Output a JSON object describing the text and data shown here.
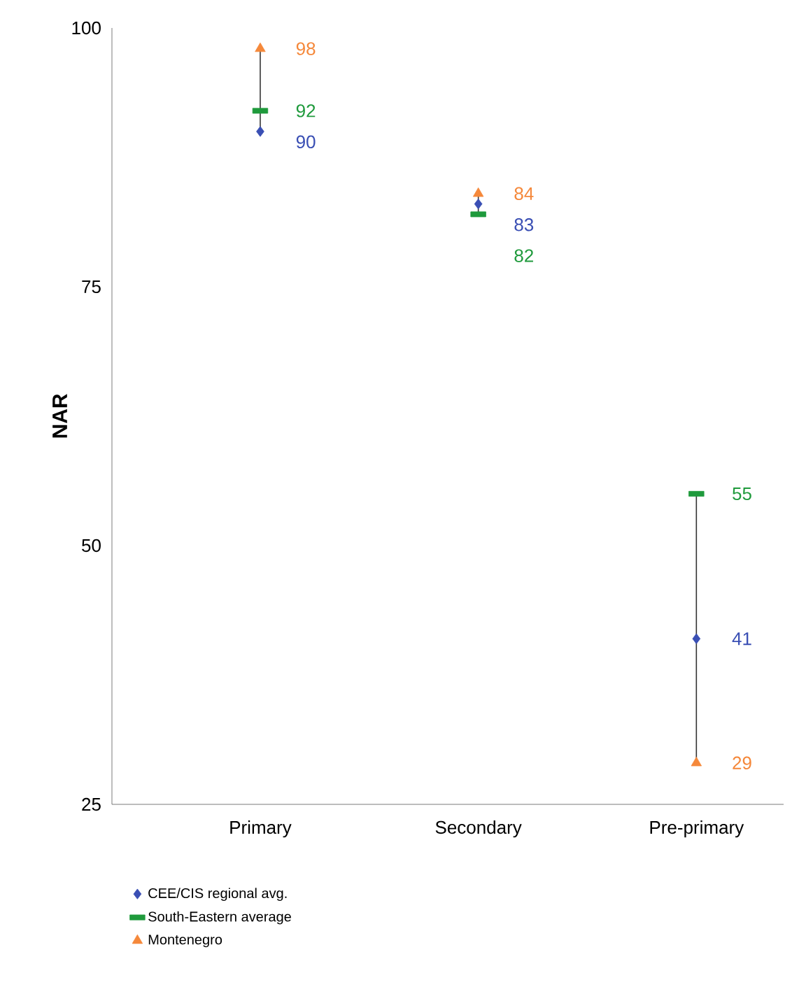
{
  "chart_data": {
    "type": "scatter",
    "ylabel": "NAR",
    "categories": [
      "Primary",
      "Secondary",
      "Pre-primary"
    ],
    "ylim": [
      25,
      100
    ],
    "yticks": [
      25,
      50,
      75,
      100
    ],
    "grid": false,
    "legend": "bottom left",
    "data_labels": true,
    "series": [
      {
        "name": "CEE/CIS regional avg.",
        "color": "#3a4fb4",
        "marker": "diamond",
        "values": [
          90,
          83,
          41
        ]
      },
      {
        "name": "South-Eastern average",
        "color": "#1f9a3c",
        "marker": "square",
        "values": [
          92,
          82,
          55
        ]
      },
      {
        "name": "Montenegro",
        "color": "#f5883a",
        "marker": "triangle",
        "values": [
          98,
          84,
          29
        ]
      }
    ]
  }
}
